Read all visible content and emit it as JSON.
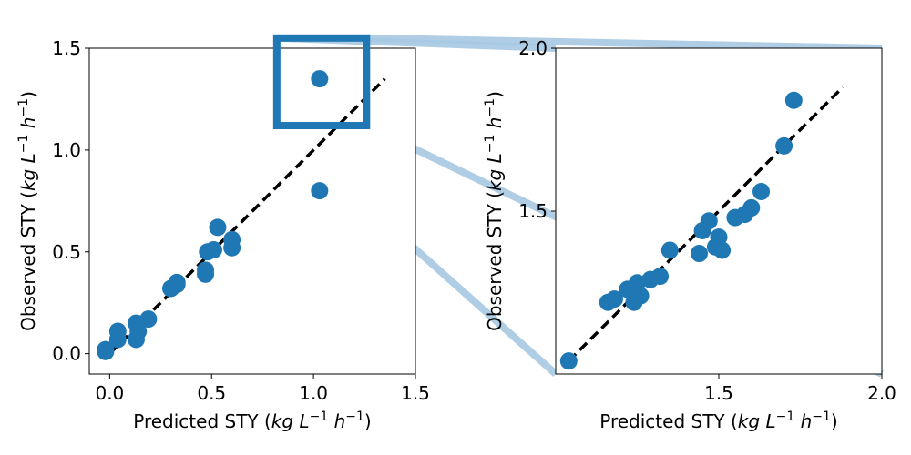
{
  "chart_data": [
    {
      "type": "scatter",
      "xlabel": "Predicted STY ($kg\\,L^{-1}\\,h^{-1}$)",
      "ylabel": "Observed STY ($kg\\,L^{-1}\\,h^{-1}$)",
      "xlabel_parts": {
        "prefix": "Predicted STY (",
        "unit_kg": "kg",
        "unit_L": "L",
        "exp_L": "−1",
        "unit_h": "h",
        "exp_h": "−1",
        "suffix": ")"
      },
      "ylabel_parts": {
        "prefix": "Observed STY (",
        "unit_kg": "kg",
        "unit_L": "L",
        "exp_L": "−1",
        "unit_h": "h",
        "exp_h": "−1",
        "suffix": ")"
      },
      "xlim": [
        -0.1,
        1.5
      ],
      "ylim": [
        -0.1,
        1.5
      ],
      "xticks": [
        0.0,
        0.5,
        1.0,
        1.5
      ],
      "xtick_labels": [
        "0.0",
        "0.5",
        "1.0",
        "1.5"
      ],
      "yticks": [
        0.0,
        0.5,
        1.0,
        1.5
      ],
      "ytick_labels": [
        "0.0",
        "0.5",
        "1.0",
        "1.5"
      ],
      "marker_color": "#1f77b4",
      "reference_line": {
        "style": "dashed",
        "color": "#000000",
        "from": [
          0.0,
          0.0
        ],
        "to": [
          1.35,
          1.35
        ]
      },
      "inset_box": {
        "x": [
          0.82,
          1.26
        ],
        "y": [
          1.12,
          1.55
        ],
        "color": "#1f77b4"
      },
      "points": [
        {
          "x": -0.02,
          "y": 0.02
        },
        {
          "x": -0.02,
          "y": 0.01
        },
        {
          "x": 0.04,
          "y": 0.07
        },
        {
          "x": 0.04,
          "y": 0.11
        },
        {
          "x": 0.13,
          "y": 0.15
        },
        {
          "x": 0.14,
          "y": 0.11
        },
        {
          "x": 0.13,
          "y": 0.07
        },
        {
          "x": 0.19,
          "y": 0.17
        },
        {
          "x": 0.3,
          "y": 0.32
        },
        {
          "x": 0.33,
          "y": 0.35
        },
        {
          "x": 0.33,
          "y": 0.34
        },
        {
          "x": 0.47,
          "y": 0.39
        },
        {
          "x": 0.47,
          "y": 0.41
        },
        {
          "x": 0.48,
          "y": 0.5
        },
        {
          "x": 0.51,
          "y": 0.51
        },
        {
          "x": 0.53,
          "y": 0.62
        },
        {
          "x": 0.6,
          "y": 0.56
        },
        {
          "x": 0.6,
          "y": 0.52
        },
        {
          "x": 1.03,
          "y": 0.8
        },
        {
          "x": 1.03,
          "y": 1.35
        }
      ]
    },
    {
      "type": "scatter",
      "xlabel": "Predicted STY ($kg\\,L^{-1}\\,h^{-1}$)",
      "ylabel": "Observed STY ($kg\\,L^{-1}\\,h^{-1}$)",
      "xlabel_parts": {
        "prefix": "Predicted STY (",
        "unit_kg": "kg",
        "unit_L": "L",
        "exp_L": "−1",
        "unit_h": "h",
        "exp_h": "−1",
        "suffix": ")"
      },
      "ylabel_parts": {
        "prefix": "Observed STY (",
        "unit_kg": "kg",
        "unit_L": "L",
        "exp_L": "−1",
        "unit_h": "h",
        "exp_h": "−1",
        "suffix": ")"
      },
      "xlim": [
        1.0,
        2.0
      ],
      "ylim": [
        1.0,
        2.0
      ],
      "xticks": [
        1.5,
        2.0
      ],
      "xtick_labels": [
        "1.5",
        "2.0"
      ],
      "yticks": [
        1.5,
        2.0
      ],
      "ytick_labels": [
        "1.5",
        "2.0"
      ],
      "marker_color": "#1f77b4",
      "reference_line": {
        "style": "dashed",
        "color": "#000000",
        "from": [
          1.04,
          1.04
        ],
        "to": [
          1.88,
          1.88
        ]
      },
      "points": [
        {
          "x": 1.04,
          "y": 1.04
        },
        {
          "x": 1.16,
          "y": 1.22
        },
        {
          "x": 1.18,
          "y": 1.23
        },
        {
          "x": 1.22,
          "y": 1.26
        },
        {
          "x": 1.24,
          "y": 1.22
        },
        {
          "x": 1.25,
          "y": 1.28
        },
        {
          "x": 1.26,
          "y": 1.24
        },
        {
          "x": 1.29,
          "y": 1.29
        },
        {
          "x": 1.32,
          "y": 1.3
        },
        {
          "x": 1.35,
          "y": 1.38
        },
        {
          "x": 1.44,
          "y": 1.37
        },
        {
          "x": 1.45,
          "y": 1.44
        },
        {
          "x": 1.47,
          "y": 1.47
        },
        {
          "x": 1.49,
          "y": 1.39
        },
        {
          "x": 1.5,
          "y": 1.42
        },
        {
          "x": 1.51,
          "y": 1.38
        },
        {
          "x": 1.55,
          "y": 1.48
        },
        {
          "x": 1.58,
          "y": 1.49
        },
        {
          "x": 1.6,
          "y": 1.51
        },
        {
          "x": 1.63,
          "y": 1.56
        },
        {
          "x": 1.7,
          "y": 1.7
        },
        {
          "x": 1.73,
          "y": 1.84
        }
      ]
    }
  ]
}
